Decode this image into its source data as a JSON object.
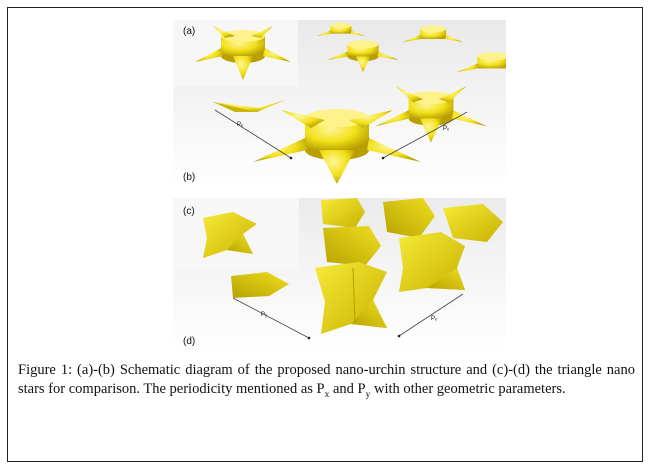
{
  "figure": {
    "panel_labels": {
      "a": "(a)",
      "b": "(b)",
      "c": "(c)",
      "d": "(d)"
    },
    "axis_labels": {
      "py": "Pᵧ",
      "px": "Pₓ"
    },
    "colors": {
      "structure": "#f2e11a",
      "shade": "#c9b400",
      "background": "#f4f4f4"
    }
  },
  "caption": {
    "part1": "Figure 1: (a)-(b) Schematic diagram of the proposed nano-urchin structure and (c)-(d) the triangle nano stars for comparison.   The periodicity mentioned as P",
    "sub_x": "x",
    "part2": " and P",
    "sub_y": "y",
    "part3": " with other geometric parameters."
  }
}
